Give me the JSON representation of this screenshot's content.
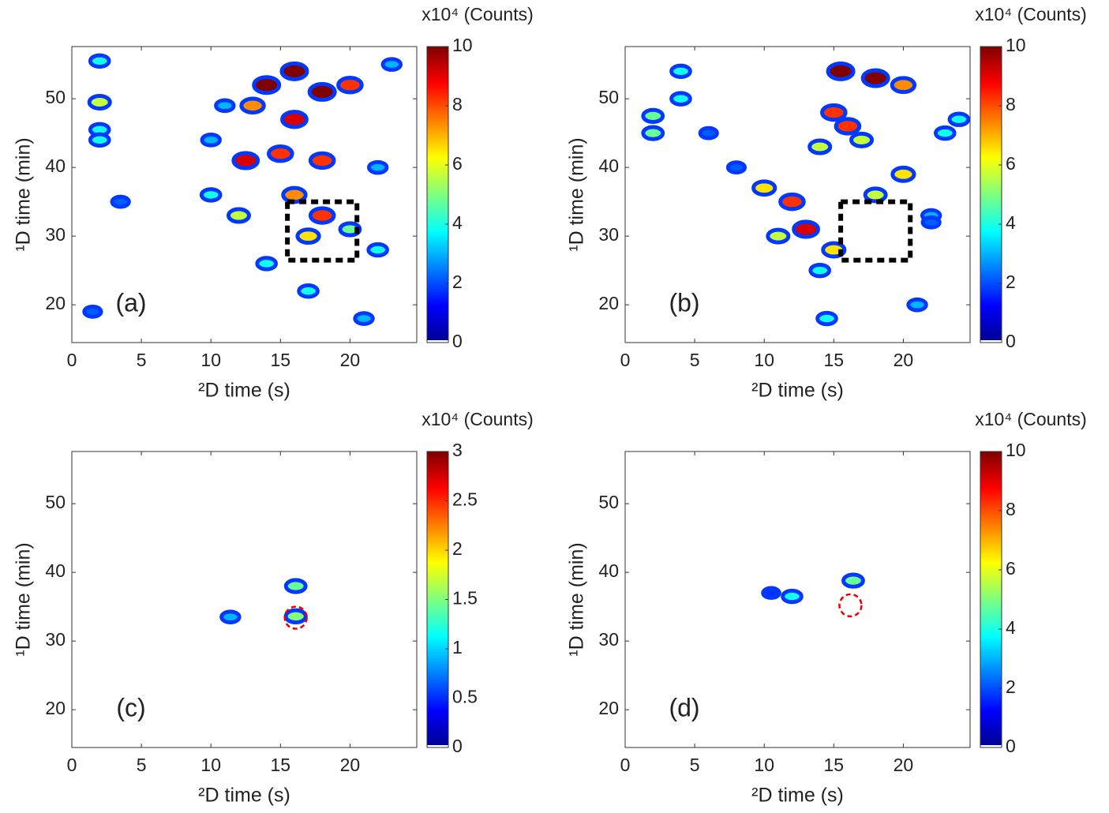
{
  "chart_data": [
    {
      "type": "contour",
      "label": "(a)",
      "xlabel": "²D time (s)",
      "ylabel": "¹D time (min)",
      "colorbar_label": "x10⁴ (Counts)",
      "xlim": [
        0,
        24.8
      ],
      "ylim": [
        14.5,
        57.6
      ],
      "xticks": [
        0,
        5,
        10,
        15,
        20
      ],
      "yticks": [
        20,
        30,
        40,
        50
      ],
      "clim": [
        0,
        10
      ],
      "cticks": [
        0,
        2,
        4,
        6,
        8,
        10
      ],
      "colormap": "jet",
      "peaks": {
        "x": [
          14,
          16,
          18,
          13,
          16,
          20,
          12.5,
          15,
          18,
          16,
          18,
          17,
          12,
          10,
          20,
          22,
          14,
          17,
          21,
          2,
          2,
          2,
          2,
          3.5,
          1.5,
          10,
          22,
          11,
          23
        ],
        "y": [
          52,
          54,
          51,
          49,
          47,
          52,
          41,
          42,
          41,
          36,
          33,
          30,
          33,
          36,
          31,
          28,
          26,
          22,
          18,
          49.5,
          55.5,
          45.5,
          44,
          35,
          19,
          44,
          40,
          49,
          55
        ],
        "values": [
          10,
          10,
          10,
          7,
          9,
          8,
          9,
          8,
          8,
          7,
          8,
          6,
          5,
          3,
          4,
          3,
          3,
          3,
          2,
          5,
          3,
          3,
          3,
          1,
          1,
          2,
          2,
          2,
          2
        ]
      },
      "box": {
        "x": [
          15.5,
          20.5
        ],
        "y": [
          26.5,
          35
        ]
      }
    },
    {
      "type": "contour",
      "label": "(b)",
      "xlabel": "²D time (s)",
      "ylabel": "¹D time (min)",
      "colorbar_label": "x10⁴ (Counts)",
      "xlim": [
        0,
        24.8
      ],
      "ylim": [
        14.5,
        57.6
      ],
      "xticks": [
        0,
        5,
        10,
        15,
        20
      ],
      "yticks": [
        20,
        30,
        40,
        50
      ],
      "clim": [
        0,
        10
      ],
      "cticks": [
        0,
        2,
        4,
        6,
        8,
        10
      ],
      "colormap": "jet",
      "peaks": {
        "x": [
          15.5,
          18,
          20,
          15,
          16,
          14,
          17,
          10,
          12,
          11,
          13,
          15,
          14,
          20,
          18,
          22,
          21,
          14.5,
          2,
          2,
          4,
          4,
          6,
          8,
          24,
          23,
          22
        ],
        "y": [
          54,
          53,
          52,
          48,
          46,
          43,
          44,
          37,
          35,
          30,
          31,
          28,
          25,
          39,
          36,
          33,
          20,
          18,
          47.5,
          45,
          50,
          54,
          45,
          40,
          47,
          45,
          32
        ],
        "values": [
          10,
          10,
          7,
          8,
          8,
          5,
          5,
          6,
          8,
          5,
          9,
          6,
          3,
          6,
          5,
          2,
          2,
          3,
          4,
          4,
          3,
          3,
          1,
          1,
          3,
          3,
          1
        ]
      },
      "box": {
        "x": [
          15.5,
          20.5
        ],
        "y": [
          26.5,
          35
        ]
      }
    },
    {
      "type": "contour",
      "label": "(c)",
      "xlabel": "²D time (s)",
      "ylabel": "¹D time (min)",
      "colorbar_label": "x10⁴ (Counts)",
      "xlim": [
        0,
        24.8
      ],
      "ylim": [
        14.5,
        57.6
      ],
      "xticks": [
        0,
        5,
        10,
        15,
        20
      ],
      "yticks": [
        20,
        30,
        40,
        50
      ],
      "clim": [
        0,
        3
      ],
      "cticks": [
        0,
        0.5,
        1,
        1.5,
        2,
        2.5,
        3
      ],
      "colormap": "jet",
      "peaks": {
        "x": [
          11.4,
          16.1,
          16.1
        ],
        "y": [
          33.5,
          38,
          33.6
        ],
        "values": [
          0.6,
          1.2,
          1.3
        ]
      },
      "circle": {
        "x": 16.1,
        "y": 33.4
      }
    },
    {
      "type": "contour",
      "label": "(d)",
      "xlabel": "²D time (s)",
      "ylabel": "¹D time (min)",
      "colorbar_label": "x10⁴ (Counts)",
      "xlim": [
        0,
        24.8
      ],
      "ylim": [
        14.5,
        57.6
      ],
      "xticks": [
        0,
        5,
        10,
        15,
        20
      ],
      "yticks": [
        20,
        30,
        40,
        50
      ],
      "clim": [
        0,
        10
      ],
      "cticks": [
        0,
        2,
        4,
        6,
        8,
        10
      ],
      "colormap": "jet",
      "peaks": {
        "x": [
          10.5,
          12,
          16.4
        ],
        "y": [
          37,
          36.5,
          38.8
        ],
        "values": [
          0.5,
          3,
          4
        ]
      },
      "circle": {
        "x": 16.2,
        "y": 35.2
      }
    }
  ]
}
